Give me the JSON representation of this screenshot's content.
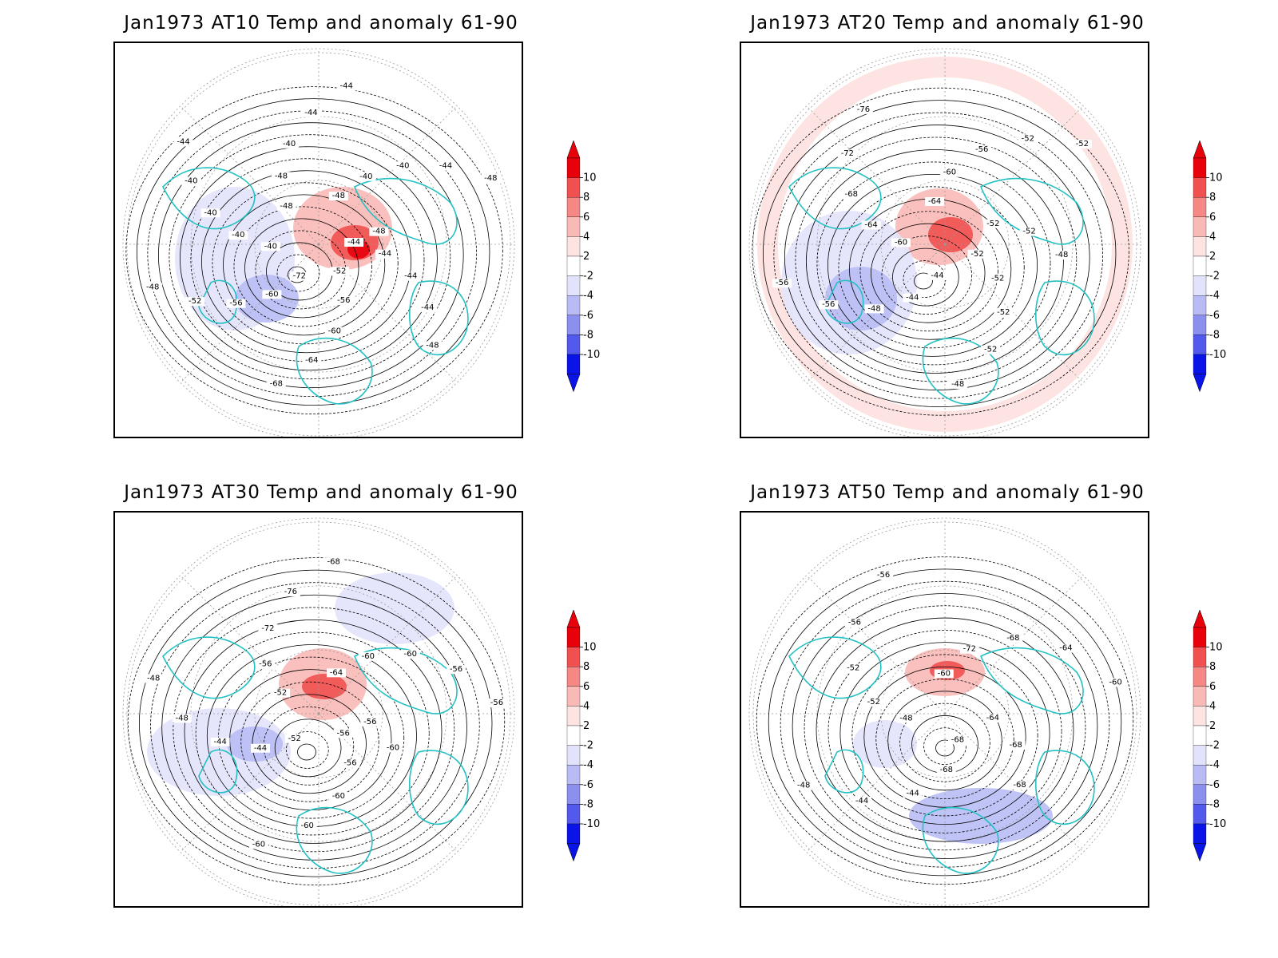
{
  "panels": [
    {
      "id": "at10",
      "title": "Jan1973 AT10 Temp and anomaly 61-90",
      "contour_labels": [
        "-44",
        "-44",
        "-44",
        "-44",
        "-48",
        "-52",
        "-56",
        "-60",
        "-64",
        "-68",
        "-72",
        "-60",
        "-56",
        "-52",
        "-48",
        "-40",
        "-40",
        "-40",
        "-40",
        "-44",
        "-48",
        "-48",
        "-40",
        "-44",
        "-44",
        "-48",
        "-40",
        "-40",
        "-44",
        "-48",
        "-48"
      ],
      "anomaly_features": [
        {
          "sign": "positive",
          "peak": 10
        },
        {
          "sign": "negative",
          "peak": -6
        }
      ]
    },
    {
      "id": "at20",
      "title": "Jan1973 AT20 Temp and anomaly 61-90",
      "contour_labels": [
        "-52",
        "-52",
        "-52",
        "-52",
        "-48",
        "-44",
        "-44",
        "-48",
        "-56",
        "-56",
        "-60",
        "-64",
        "-68",
        "-72",
        "-76",
        "-64",
        "-60",
        "-56",
        "-52",
        "-52",
        "-52",
        "-52",
        "-48"
      ],
      "anomaly_features": [
        {
          "sign": "positive",
          "peak": 8
        },
        {
          "sign": "negative",
          "peak": -6
        }
      ]
    },
    {
      "id": "at30",
      "title": "Jan1973 AT30 Temp and anomaly 61-90",
      "contour_labels": [
        "-56",
        "-56",
        "-60",
        "-60",
        "-60",
        "-52",
        "-44",
        "-44",
        "-48",
        "-48",
        "-52",
        "-56",
        "-72",
        "-76",
        "-68",
        "-64",
        "-60",
        "-60",
        "-56",
        "-56",
        "-56",
        "-60"
      ],
      "anomaly_features": [
        {
          "sign": "positive",
          "peak": 6
        },
        {
          "sign": "negative",
          "peak": -6
        }
      ]
    },
    {
      "id": "at50",
      "title": "Jan1973 AT50 Temp and anomaly 61-90",
      "contour_labels": [
        "-68",
        "-68",
        "-44",
        "-44",
        "-48",
        "-48",
        "-52",
        "-52",
        "-56",
        "-56",
        "-60",
        "-72",
        "-68",
        "-64",
        "-60",
        "-64",
        "-68",
        "-68"
      ],
      "anomaly_features": [
        {
          "sign": "positive",
          "peak": 4
        },
        {
          "sign": "negative",
          "peak": -4
        }
      ]
    }
  ],
  "colorbar": {
    "labels": [
      "10",
      "8",
      "6",
      "4",
      "2",
      "-2",
      "-4",
      "-6",
      "-8",
      "-10"
    ],
    "colors": [
      "#e8000b",
      "#f0504f",
      "#f58784",
      "#f9b9b6",
      "#fde3e1",
      "#ffffff",
      "#e2e3fb",
      "#b9bcf4",
      "#8a8ff0",
      "#5359ec",
      "#0a14e6"
    ],
    "over_color": "#e8000b",
    "under_color": "#0a14e6"
  },
  "colors": {
    "coastline": "#22c1c3",
    "contour": "#000000",
    "grid": "#9a9a9a"
  }
}
